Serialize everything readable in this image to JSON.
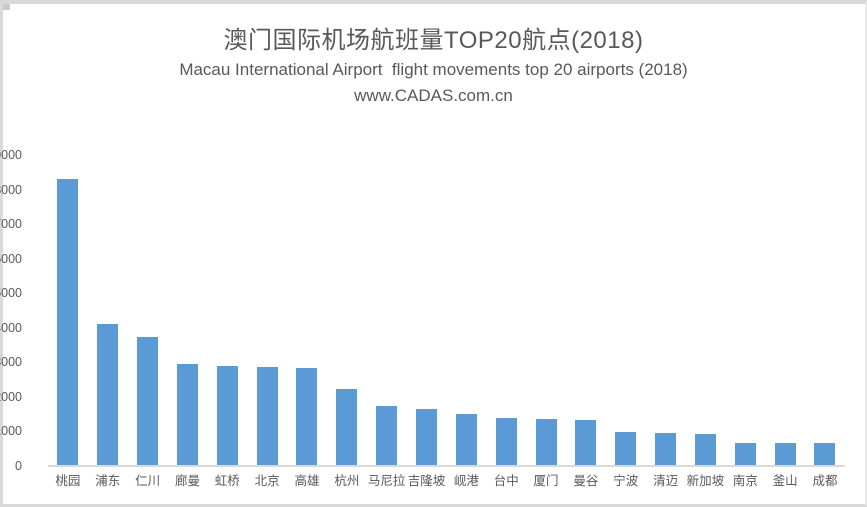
{
  "header": {
    "title": "澳门国际机场航班量TOP20航点(2018)",
    "subtitle": "Macau International Airport  flight movements top 20 airports (2018)",
    "watermark": "www.CADAS.com.cn",
    "text_color": "#595959"
  },
  "chart_data": {
    "type": "bar",
    "title": "澳门国际机场航班量TOP20航点(2018)",
    "subtitle": "Macau International Airport  flight movements top 20 airports (2018)",
    "source": "www.CADAS.com.cn",
    "categories": [
      "桃园",
      "浦东",
      "仁川",
      "廊曼",
      "虹桥",
      "北京",
      "高雄",
      "杭州",
      "马尼拉",
      "吉隆坡",
      "岘港",
      "台中",
      "厦门",
      "曼谷",
      "宁波",
      "清迈",
      "新加坡",
      "南京",
      "釜山",
      "成都"
    ],
    "values": [
      8300,
      4100,
      3720,
      2940,
      2890,
      2860,
      2830,
      2220,
      1740,
      1640,
      1510,
      1380,
      1350,
      1340,
      980,
      950,
      920,
      670,
      670,
      660
    ],
    "xlabel": "",
    "ylabel": "",
    "ylim": [
      0,
      9000
    ],
    "ytick_step": 1000,
    "grid": false,
    "legend": "none",
    "bar_color": "#5b9bd5",
    "axis_line_color": "#d9d9d9",
    "label_color": "#595959"
  }
}
